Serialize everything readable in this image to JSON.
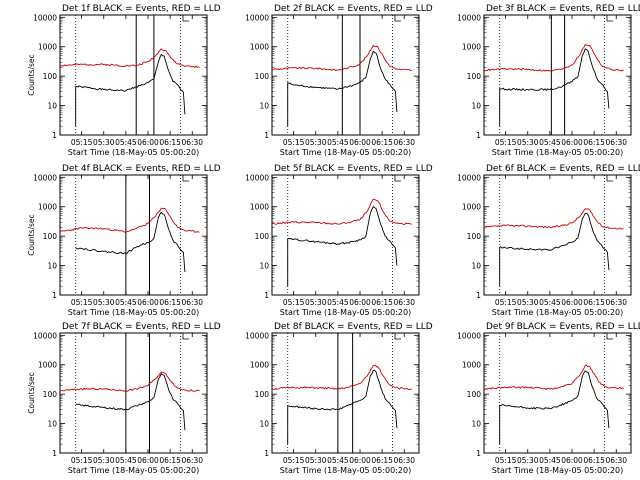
{
  "chart_data": [
    {
      "type": "line",
      "title": "Det 1f BLACK = Events, RED = LLD",
      "xlabel": "Start Time (18-May-05 05:00:20)",
      "ylabel": "Counts/sec",
      "xticks": [
        "05:15",
        "05:30",
        "05:45",
        "06:00",
        "06:15",
        "06:30"
      ],
      "yticks": [
        "1",
        "10",
        "100",
        "1000",
        "10000"
      ],
      "xlim": [
        "05:00:20",
        "06:40"
      ],
      "ylim": [
        1,
        12000
      ],
      "yscale": "log",
      "solid_markers": [
        "05:52",
        "06:04"
      ],
      "dotted_markers": [
        "05:11",
        "06:22"
      ],
      "series": [
        {
          "color": "#000000",
          "x": [
            "05:11",
            "05:11",
            "05:15",
            "05:30",
            "05:45",
            "05:52",
            "05:55",
            "06:00",
            "06:04",
            "06:07",
            "06:09",
            "06:11",
            "06:14",
            "06:17",
            "06:20",
            "06:22",
            "06:24",
            "06:25"
          ],
          "y": [
            2,
            45,
            43,
            35,
            32,
            44,
            48,
            60,
            80,
            300,
            550,
            480,
            150,
            65,
            52,
            35,
            28,
            5
          ]
        },
        {
          "color": "#cc0000",
          "x": [
            "05:00:20",
            "05:15",
            "05:30",
            "05:45",
            "05:52",
            "06:00",
            "06:05",
            "06:09",
            "06:12",
            "06:16",
            "06:20",
            "06:26",
            "06:35"
          ],
          "y": [
            230,
            250,
            250,
            225,
            230,
            310,
            480,
            850,
            760,
            390,
            260,
            220,
            200
          ]
        }
      ]
    },
    {
      "type": "line",
      "title": "Det 2f BLACK = Events, RED = LLD",
      "xlabel": "Start Time (18-May-05 05:00:20)",
      "ylabel": "",
      "xticks": [
        "05:15",
        "05:30",
        "05:45",
        "06:00",
        "06:15",
        "06:30"
      ],
      "yticks": [
        "1",
        "10",
        "100",
        "1000",
        "10000"
      ],
      "xlim": [
        "05:00:20",
        "06:40"
      ],
      "ylim": [
        1,
        12000
      ],
      "yscale": "log",
      "solid_markers": [
        "05:48",
        "06:00"
      ],
      "dotted_markers": [
        "05:11",
        "06:22"
      ],
      "series": [
        {
          "color": "#000000",
          "x": [
            "05:11",
            "05:11",
            "05:15",
            "05:30",
            "05:45",
            "05:52",
            "05:55",
            "06:00",
            "06:04",
            "06:07",
            "06:09",
            "06:11",
            "06:14",
            "06:17",
            "06:20",
            "06:22",
            "06:24",
            "06:25"
          ],
          "y": [
            2,
            60,
            50,
            42,
            36,
            45,
            48,
            60,
            90,
            380,
            700,
            600,
            180,
            80,
            55,
            38,
            30,
            6
          ]
        },
        {
          "color": "#cc0000",
          "x": [
            "05:00:20",
            "05:15",
            "05:30",
            "05:45",
            "05:52",
            "06:00",
            "06:05",
            "06:09",
            "06:12",
            "06:16",
            "06:20",
            "06:26",
            "06:35"
          ],
          "y": [
            170,
            190,
            185,
            160,
            190,
            260,
            500,
            1100,
            1000,
            450,
            220,
            170,
            160
          ]
        }
      ]
    },
    {
      "type": "line",
      "title": "Det 3f BLACK = Events, RED = LLD",
      "xlabel": "Start Time (18-May-05 05:00:20)",
      "ylabel": "",
      "xticks": [
        "05:15",
        "05:30",
        "05:45",
        "06:00",
        "06:15",
        "06:30"
      ],
      "yticks": [
        "1",
        "10",
        "100",
        "1000",
        "10000"
      ],
      "xlim": [
        "05:00:20",
        "06:40"
      ],
      "ylim": [
        1,
        12000
      ],
      "yscale": "log",
      "solid_markers": [
        "05:46",
        "05:55"
      ],
      "dotted_markers": [
        "05:11",
        "06:22"
      ],
      "series": [
        {
          "color": "#000000",
          "x": [
            "05:11",
            "05:11",
            "05:15",
            "05:30",
            "05:45",
            "05:52",
            "05:55",
            "06:00",
            "06:04",
            "06:07",
            "06:09",
            "06:11",
            "06:14",
            "06:17",
            "06:20",
            "06:22",
            "06:24",
            "06:25"
          ],
          "y": [
            2,
            38,
            36,
            35,
            35,
            42,
            50,
            65,
            95,
            500,
            850,
            700,
            200,
            80,
            55,
            40,
            30,
            8
          ]
        },
        {
          "color": "#cc0000",
          "x": [
            "05:00:20",
            "05:15",
            "05:30",
            "05:45",
            "05:52",
            "06:00",
            "06:05",
            "06:09",
            "06:12",
            "06:16",
            "06:20",
            "06:26",
            "06:35"
          ],
          "y": [
            160,
            175,
            170,
            150,
            170,
            240,
            500,
            1200,
            1100,
            480,
            230,
            170,
            155
          ]
        }
      ]
    },
    {
      "type": "line",
      "title": "Det 4f BLACK = Events, RED = LLD",
      "xlabel": "Start Time (18-May-05 05:00:20)",
      "ylabel": "Counts/sec",
      "xticks": [
        "05:15",
        "05:30",
        "05:45",
        "06:00",
        "06:15",
        "06:30"
      ],
      "yticks": [
        "1",
        "10",
        "100",
        "1000",
        "10000"
      ],
      "xlim": [
        "05:00:20",
        "06:40"
      ],
      "ylim": [
        1,
        12000
      ],
      "yscale": "log",
      "solid_markers": [
        "05:45",
        "06:01"
      ],
      "dotted_markers": [
        "05:11",
        "06:22"
      ],
      "series": [
        {
          "color": "#000000",
          "x": [
            "05:11",
            "05:15",
            "05:30",
            "05:45",
            "05:52",
            "05:55",
            "06:00",
            "06:04",
            "06:07",
            "06:09",
            "06:11",
            "06:14",
            "06:17",
            "06:20",
            "06:22",
            "06:24",
            "06:25"
          ],
          "y": [
            40,
            38,
            30,
            26,
            42,
            50,
            60,
            85,
            420,
            650,
            550,
            170,
            70,
            50,
            35,
            28,
            6
          ]
        },
        {
          "color": "#cc0000",
          "x": [
            "05:00:20",
            "05:15",
            "05:30",
            "05:45",
            "05:52",
            "06:00",
            "06:05",
            "06:09",
            "06:12",
            "06:16",
            "06:20",
            "06:26",
            "06:35"
          ],
          "y": [
            140,
            190,
            180,
            140,
            180,
            270,
            470,
            900,
            820,
            380,
            200,
            150,
            140
          ]
        }
      ]
    },
    {
      "type": "line",
      "title": "Det 5f BLACK = Events, RED = LLD",
      "xlabel": "Start Time (18-May-05 05:00:20)",
      "ylabel": "",
      "xticks": [
        "05:15",
        "05:30",
        "05:45",
        "06:00",
        "06:15",
        "06:30"
      ],
      "yticks": [
        "1",
        "10",
        "100",
        "1000",
        "10000"
      ],
      "xlim": [
        "05:00:20",
        "06:40"
      ],
      "ylim": [
        1,
        12000
      ],
      "yscale": "log",
      "solid_markers": [],
      "dotted_markers": [
        "05:11",
        "06:22"
      ],
      "series": [
        {
          "color": "#000000",
          "x": [
            "05:11",
            "05:11",
            "05:15",
            "05:30",
            "05:45",
            "05:52",
            "05:55",
            "06:00",
            "06:04",
            "06:07",
            "06:09",
            "06:11",
            "06:14",
            "06:17",
            "06:20",
            "06:22",
            "06:24",
            "06:25"
          ],
          "y": [
            2,
            80,
            78,
            65,
            55,
            60,
            65,
            75,
            100,
            600,
            1000,
            850,
            250,
            100,
            70,
            50,
            40,
            10
          ]
        },
        {
          "color": "#cc0000",
          "x": [
            "05:00:20",
            "05:15",
            "05:30",
            "05:45",
            "05:52",
            "06:00",
            "06:05",
            "06:09",
            "06:12",
            "06:16",
            "06:20",
            "06:26",
            "06:35"
          ],
          "y": [
            260,
            300,
            290,
            260,
            290,
            360,
            700,
            1800,
            1600,
            650,
            330,
            270,
            250
          ]
        }
      ]
    },
    {
      "type": "line",
      "title": "Det 6f BLACK = Events, RED = LLD",
      "xlabel": "Start Time (18-May-05 05:00:20)",
      "ylabel": "",
      "xticks": [
        "05:15",
        "05:30",
        "05:45",
        "06:00",
        "06:15",
        "06:30"
      ],
      "yticks": [
        "1",
        "10",
        "100",
        "1000",
        "10000"
      ],
      "xlim": [
        "05:00:20",
        "06:40"
      ],
      "ylim": [
        1,
        12000
      ],
      "yscale": "log",
      "solid_markers": [],
      "dotted_markers": [
        "05:11",
        "06:22"
      ],
      "series": [
        {
          "color": "#000000",
          "x": [
            "05:11",
            "05:11",
            "05:15",
            "05:30",
            "05:45",
            "05:52",
            "05:55",
            "06:00",
            "06:04",
            "06:07",
            "06:09",
            "06:11",
            "06:14",
            "06:17",
            "06:20",
            "06:22",
            "06:24",
            "06:25"
          ],
          "y": [
            2,
            42,
            40,
            36,
            34,
            45,
            50,
            62,
            85,
            380,
            600,
            520,
            160,
            70,
            50,
            36,
            28,
            7
          ]
        },
        {
          "color": "#cc0000",
          "x": [
            "05:00:20",
            "05:15",
            "05:30",
            "05:45",
            "05:52",
            "06:00",
            "06:05",
            "06:09",
            "06:12",
            "06:16",
            "06:20",
            "06:26",
            "06:35"
          ],
          "y": [
            200,
            230,
            220,
            200,
            220,
            280,
            450,
            850,
            780,
            370,
            220,
            190,
            180
          ]
        }
      ]
    },
    {
      "type": "line",
      "title": "Det 7f BLACK = Events, RED = LLD",
      "xlabel": "Start Time (18-May-05 05:00:20)",
      "ylabel": "Counts/sec",
      "xticks": [
        "05:15",
        "05:30",
        "05:45",
        "06:00",
        "06:15",
        "06:30"
      ],
      "yticks": [
        "1",
        "10",
        "100",
        "1000",
        "10000"
      ],
      "xlim": [
        "05:00:20",
        "06:40"
      ],
      "ylim": [
        1,
        12000
      ],
      "yscale": "log",
      "solid_markers": [
        "05:45",
        "06:01"
      ],
      "dotted_markers": [
        "05:11",
        "06:22"
      ],
      "series": [
        {
          "color": "#000000",
          "x": [
            "05:11",
            "05:15",
            "05:30",
            "05:45",
            "05:52",
            "05:55",
            "06:00",
            "06:04",
            "06:07",
            "06:09",
            "06:11",
            "06:14",
            "06:17",
            "06:20",
            "06:22",
            "06:24",
            "06:25"
          ],
          "y": [
            45,
            42,
            35,
            30,
            40,
            45,
            55,
            75,
            320,
            500,
            430,
            140,
            65,
            48,
            35,
            28,
            6
          ]
        },
        {
          "color": "#cc0000",
          "x": [
            "05:00:20",
            "05:15",
            "05:30",
            "05:45",
            "05:52",
            "06:00",
            "06:05",
            "06:09",
            "06:12",
            "06:16",
            "06:20",
            "06:26",
            "06:35"
          ],
          "y": [
            130,
            150,
            150,
            130,
            150,
            200,
            330,
            560,
            500,
            260,
            160,
            135,
            130
          ]
        }
      ]
    },
    {
      "type": "line",
      "title": "Det 8f BLACK = Events, RED = LLD",
      "xlabel": "Start Time (18-May-05 05:00:20)",
      "ylabel": "",
      "xticks": [
        "05:15",
        "05:30",
        "05:45",
        "06:00",
        "06:15",
        "06:30"
      ],
      "yticks": [
        "1",
        "10",
        "100",
        "1000",
        "10000"
      ],
      "xlim": [
        "05:00:20",
        "06:40"
      ],
      "ylim": [
        1,
        12000
      ],
      "yscale": "log",
      "solid_markers": [
        "05:45",
        "05:55"
      ],
      "dotted_markers": [
        "05:11",
        "06:22"
      ],
      "series": [
        {
          "color": "#000000",
          "x": [
            "05:11",
            "05:11",
            "05:15",
            "05:30",
            "05:45",
            "05:52",
            "05:55",
            "06:00",
            "06:04",
            "06:07",
            "06:09",
            "06:11",
            "06:14",
            "06:17",
            "06:20",
            "06:22",
            "06:24",
            "06:25"
          ],
          "y": [
            2,
            40,
            38,
            32,
            30,
            42,
            48,
            60,
            85,
            420,
            650,
            560,
            170,
            70,
            50,
            36,
            28,
            7
          ]
        },
        {
          "color": "#cc0000",
          "x": [
            "05:00:20",
            "05:15",
            "05:30",
            "05:45",
            "05:52",
            "06:00",
            "06:05",
            "06:09",
            "06:12",
            "06:16",
            "06:20",
            "06:26",
            "06:35"
          ],
          "y": [
            150,
            170,
            165,
            150,
            170,
            230,
            420,
            950,
            870,
            400,
            210,
            160,
            150
          ]
        }
      ]
    },
    {
      "type": "line",
      "title": "Det 9f BLACK = Events, RED = LLD",
      "xlabel": "Start Time (18-May-05 05:00:20)",
      "ylabel": "",
      "xticks": [
        "05:15",
        "05:30",
        "05:45",
        "06:00",
        "06:15",
        "06:30"
      ],
      "yticks": [
        "1",
        "10",
        "100",
        "1000",
        "10000"
      ],
      "xlim": [
        "05:00:20",
        "06:40"
      ],
      "ylim": [
        1,
        12000
      ],
      "yscale": "log",
      "solid_markers": [],
      "dotted_markers": [
        "05:11",
        "06:22"
      ],
      "series": [
        {
          "color": "#000000",
          "x": [
            "05:11",
            "05:11",
            "05:15",
            "05:30",
            "05:45",
            "05:52",
            "05:55",
            "06:00",
            "06:04",
            "06:07",
            "06:09",
            "06:11",
            "06:14",
            "06:17",
            "06:20",
            "06:22",
            "06:24",
            "06:25"
          ],
          "y": [
            2,
            42,
            40,
            34,
            32,
            42,
            48,
            60,
            85,
            400,
            620,
            540,
            165,
            70,
            50,
            36,
            28,
            7
          ]
        },
        {
          "color": "#cc0000",
          "x": [
            "05:00:20",
            "05:15",
            "05:30",
            "05:45",
            "05:52",
            "06:00",
            "06:05",
            "06:09",
            "06:12",
            "06:16",
            "06:20",
            "06:26",
            "06:35"
          ],
          "y": [
            150,
            170,
            170,
            150,
            170,
            230,
            420,
            950,
            870,
            400,
            210,
            165,
            155
          ]
        }
      ]
    }
  ]
}
